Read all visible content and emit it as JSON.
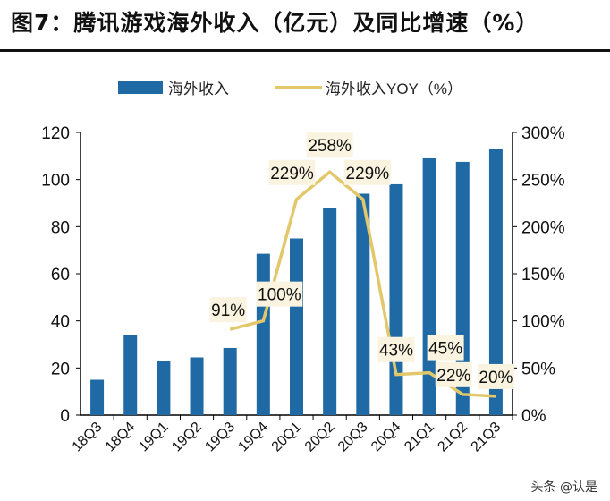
{
  "title": "图7：腾讯游戏海外收入（亿元）及同比增速（%）",
  "watermark": "头条 @认是",
  "chart_data": {
    "type": "bar+line",
    "categories": [
      "18Q3",
      "18Q4",
      "19Q1",
      "19Q2",
      "19Q3",
      "19Q4",
      "20Q1",
      "20Q2",
      "20Q3",
      "20Q4",
      "21Q1",
      "21Q2",
      "21Q3"
    ],
    "series": [
      {
        "name": "海外收入",
        "type": "bar",
        "axis": "left",
        "color": "#1f6aa5",
        "values": [
          15,
          34,
          23,
          24.5,
          28.5,
          68.5,
          75,
          88,
          94,
          98,
          109,
          107.5,
          113
        ]
      },
      {
        "name": "海外收入YOY（%）",
        "type": "line",
        "axis": "right",
        "color": "#e2c86a",
        "values": [
          null,
          null,
          null,
          null,
          91,
          100,
          229,
          258,
          229,
          43,
          45,
          22,
          20
        ],
        "labels": [
          "",
          "",
          "",
          "",
          "91%",
          "100%",
          "229%",
          "258%",
          "229%",
          "43%",
          "45%",
          "22%",
          "20%"
        ]
      }
    ],
    "left_axis": {
      "range": [
        0,
        120
      ],
      "ticks": [
        "0",
        "20",
        "40",
        "60",
        "80",
        "100",
        "120"
      ]
    },
    "right_axis": {
      "range": [
        0,
        300
      ],
      "ticks": [
        "0%",
        "50%",
        "100%",
        "150%",
        "200%",
        "250%",
        "300%"
      ]
    },
    "legend": "top",
    "grid": false
  }
}
